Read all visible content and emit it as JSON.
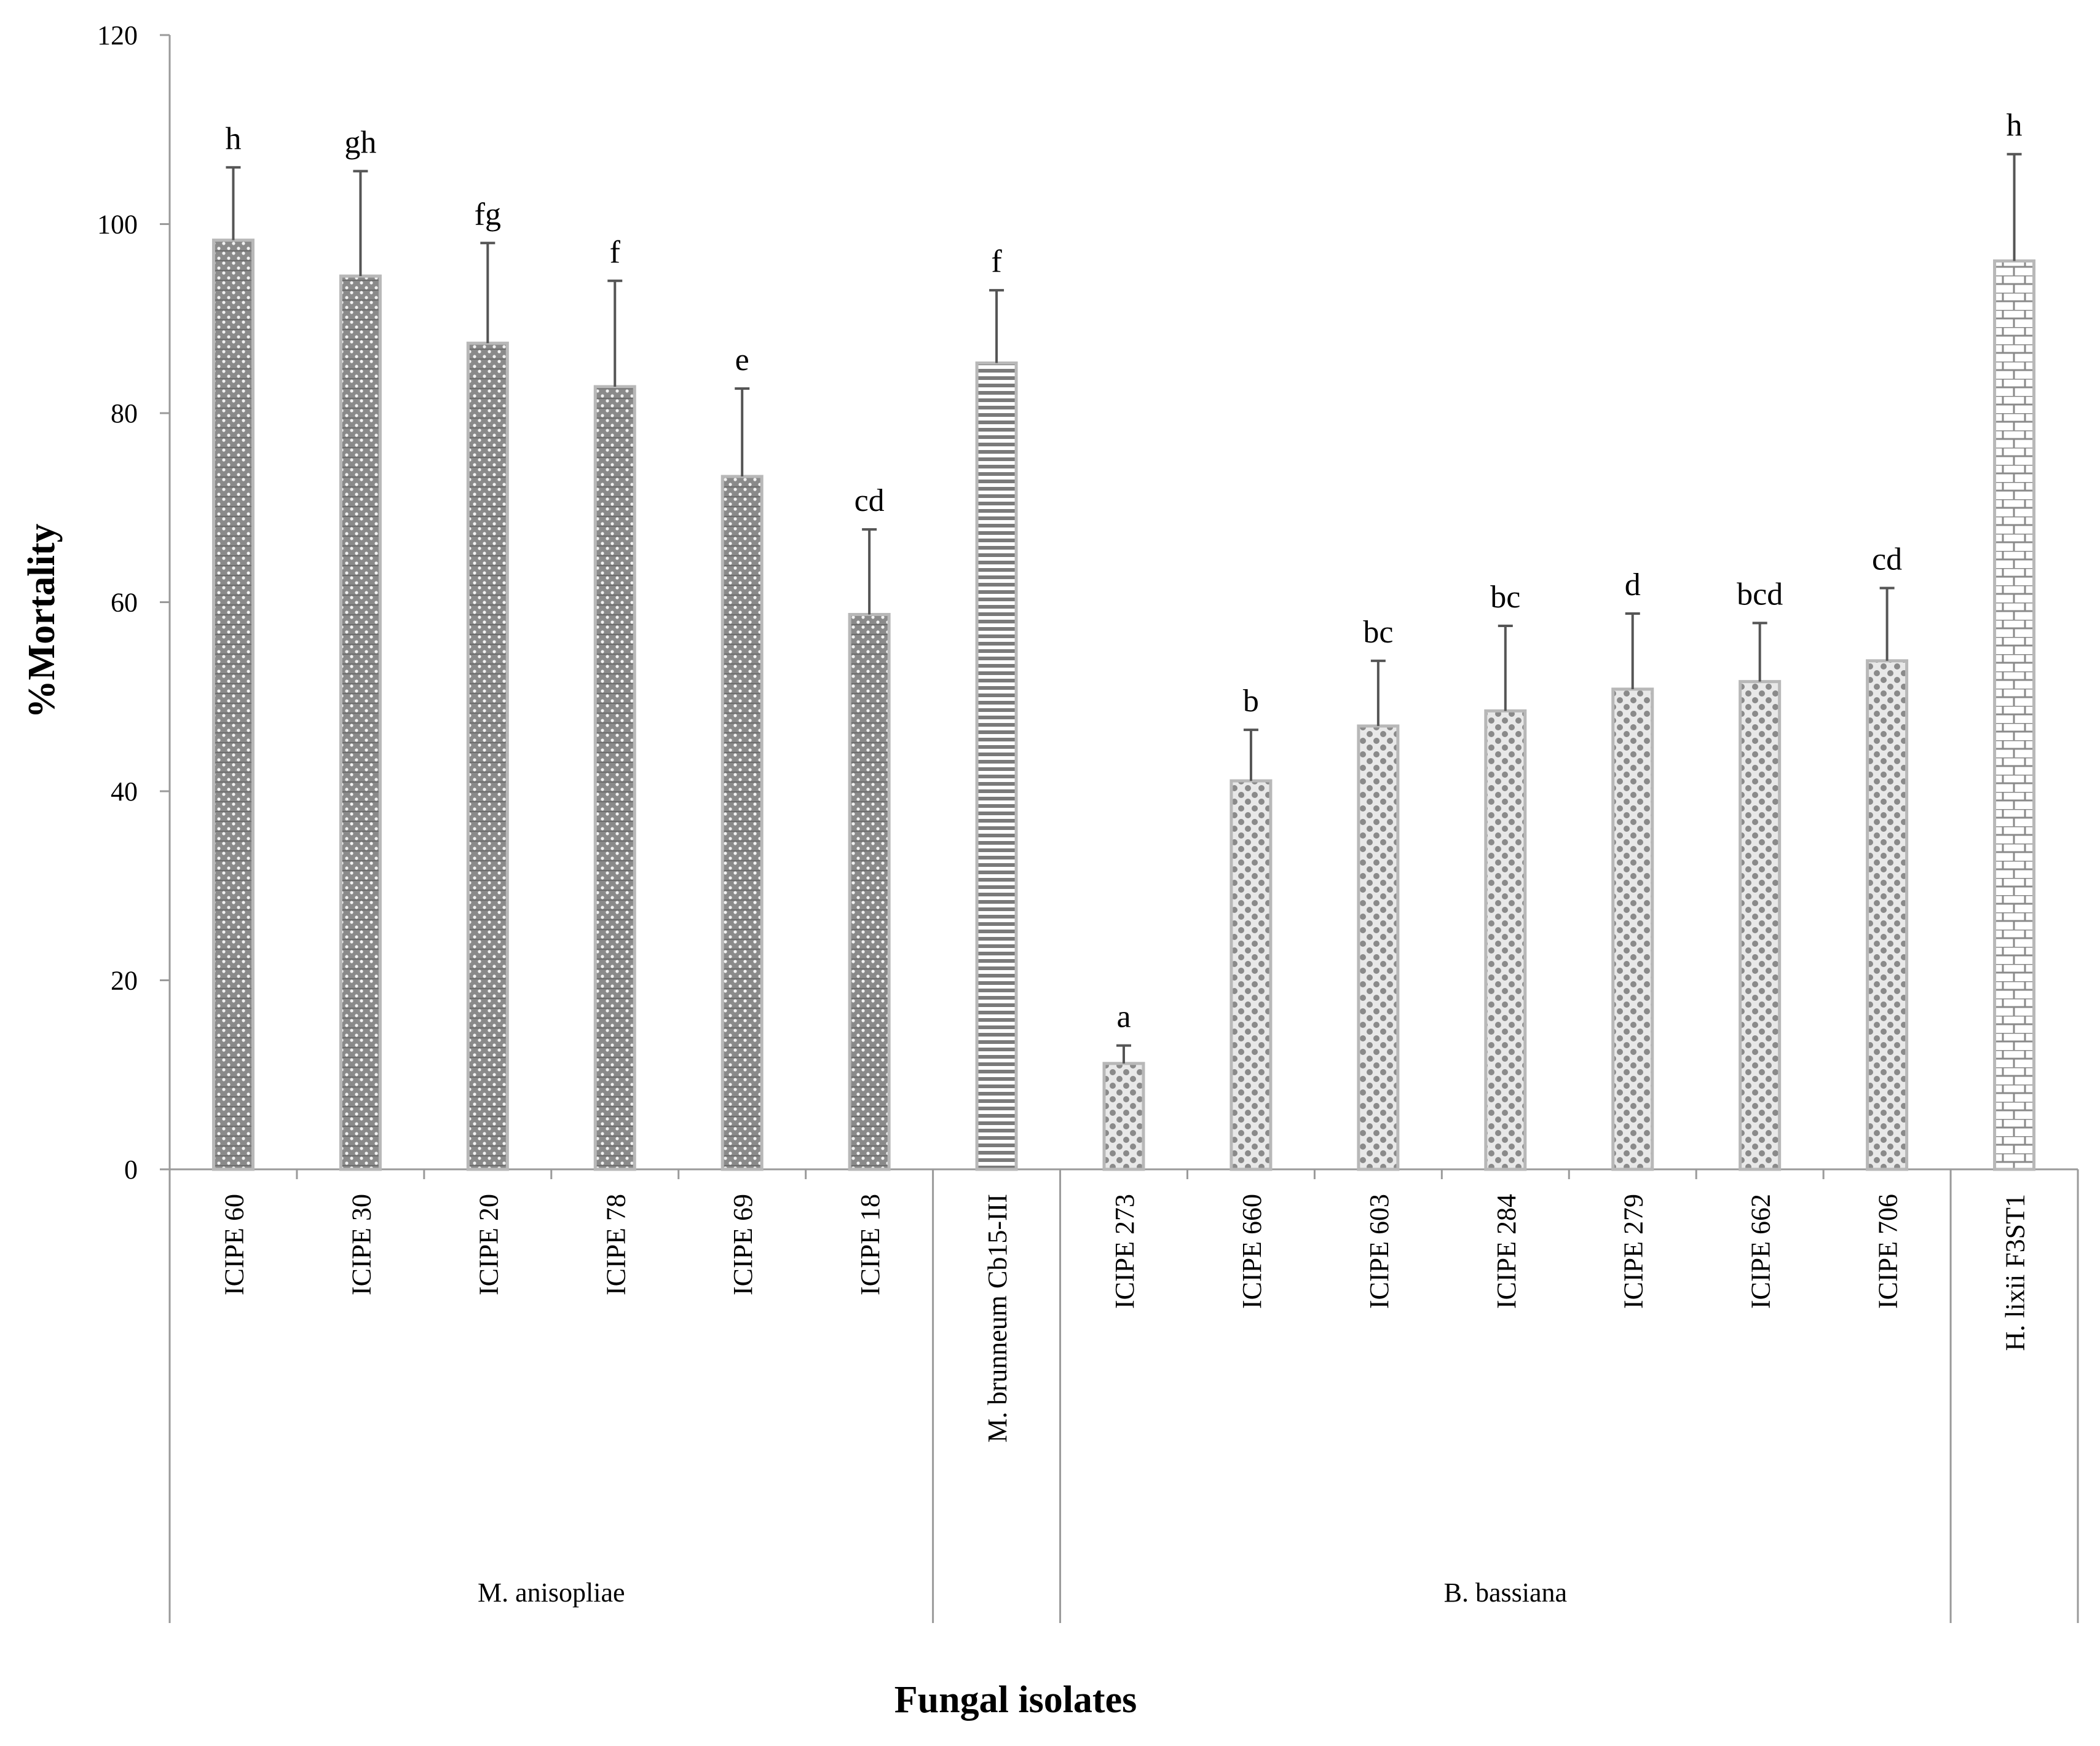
{
  "chart_data": {
    "type": "bar",
    "ylabel": "%Mortality",
    "xlabel": "Fungal isolates",
    "ylim": [
      0,
      120
    ],
    "yticks": [
      0,
      20,
      40,
      60,
      80,
      100,
      120
    ],
    "grid": false,
    "legend": "none",
    "categories": [
      "ICIPE 60",
      "ICIPE 30",
      "ICIPE 20",
      "ICIPE 78",
      "ICIPE 69",
      "ICIPE 18",
      "M. brunneum Cb15-III",
      "ICIPE 273",
      "ICIPE 660",
      "ICIPE 603",
      "ICIPE 284",
      "ICIPE 279",
      "ICIPE 662",
      "ICIPE 706",
      "H. lixii F3ST1"
    ],
    "values": [
      98.3,
      94.5,
      87.4,
      82.8,
      73.3,
      58.7,
      85.3,
      11.2,
      41.1,
      46.9,
      48.5,
      50.8,
      51.6,
      53.8,
      96.1
    ],
    "error_upper": [
      106.0,
      105.6,
      98.0,
      94.0,
      82.6,
      67.7,
      93.0,
      13.1,
      46.5,
      53.8,
      57.5,
      58.8,
      57.8,
      61.5,
      107.4
    ],
    "significance_letters": [
      "h",
      "gh",
      "fg",
      "f",
      "e",
      "cd",
      "f",
      "a",
      "b",
      "bc",
      "bc",
      "d",
      "bcd",
      "cd",
      "h"
    ],
    "groups": [
      {
        "name": "M. anisopliae",
        "start": 0,
        "end": 5
      },
      {
        "name": "",
        "start": 6,
        "end": 6
      },
      {
        "name": "B. bassiana",
        "start": 7,
        "end": 13
      },
      {
        "name": "",
        "start": 14,
        "end": 14
      }
    ],
    "patterns": [
      "dots",
      "dots",
      "dots",
      "dots",
      "dots",
      "dots",
      "hlines",
      "circles",
      "circles",
      "circles",
      "circles",
      "circles",
      "circles",
      "circles",
      "bricks"
    ],
    "colors": {
      "bar_fill": "#8c8c8c",
      "bar_stroke": "#b8b8b8",
      "axis": "#9a9a9a",
      "error_bar": "#555555"
    }
  }
}
